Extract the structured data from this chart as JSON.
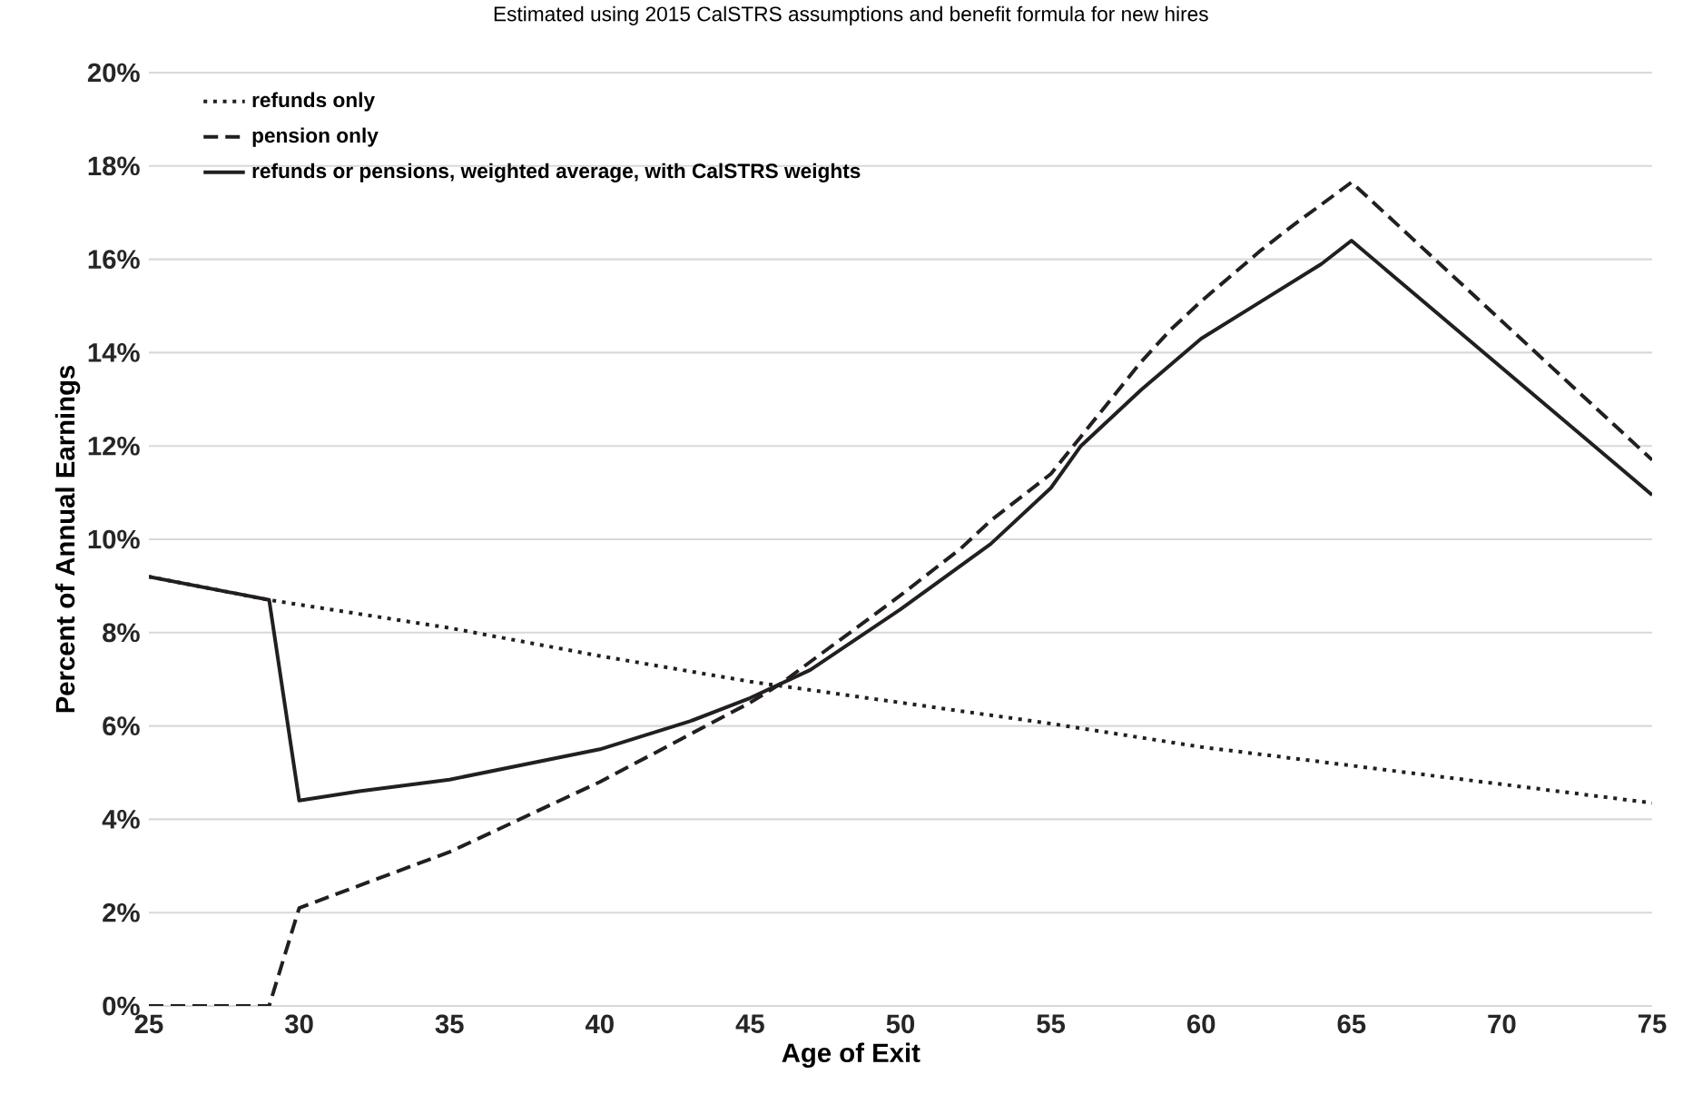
{
  "chart_data": {
    "type": "line",
    "title": "Estimated using 2015 CalSTRS assumptions and benefit formula for new hires",
    "xlabel": "Age of Exit",
    "ylabel": "Percent of Annual Earnings",
    "xlim": [
      25,
      75
    ],
    "xticks": [
      25,
      30,
      35,
      40,
      45,
      50,
      55,
      60,
      65,
      70,
      75
    ],
    "ylim": [
      0,
      20
    ],
    "yticks": [
      {
        "value": 0,
        "label": "0%"
      },
      {
        "value": 2,
        "label": "2%"
      },
      {
        "value": 4,
        "label": "4%"
      },
      {
        "value": 6,
        "label": "6%"
      },
      {
        "value": 8,
        "label": "8%"
      },
      {
        "value": 10,
        "label": "10%"
      },
      {
        "value": 12,
        "label": "12%"
      },
      {
        "value": 14,
        "label": "14%"
      },
      {
        "value": 16,
        "label": "16%"
      },
      {
        "value": 18,
        "label": "18%"
      },
      {
        "value": 20,
        "label": "20%"
      }
    ],
    "grid": "y",
    "legend": "top left",
    "marker": "none",
    "series": [
      {
        "name": "refunds only",
        "color": "#231f20",
        "line_style": "dotted",
        "x": [
          25,
          29,
          35,
          40,
          45,
          50,
          55,
          60,
          65,
          70,
          75
        ],
        "values": [
          9.2,
          8.7,
          8.1,
          7.5,
          6.95,
          6.5,
          6.05,
          5.55,
          5.15,
          4.75,
          4.35
        ]
      },
      {
        "name": "pension only",
        "color": "#231f20",
        "line_style": "dashed",
        "x": [
          25,
          29,
          30,
          35,
          40,
          45,
          46,
          50,
          52,
          53,
          55,
          56,
          57,
          58,
          59,
          60,
          62,
          63,
          65,
          75
        ],
        "values": [
          0,
          0,
          2.1,
          3.3,
          4.8,
          6.5,
          6.9,
          8.8,
          9.8,
          10.4,
          11.4,
          12.2,
          13.0,
          13.8,
          14.5,
          15.1,
          16.2,
          16.7,
          17.65,
          11.7
        ]
      },
      {
        "name": "refunds or pensions, weighted average, with CalSTRS weights",
        "color": "#231f20",
        "line_style": "solid",
        "x": [
          25,
          29,
          30,
          32,
          35,
          40,
          43,
          45,
          47,
          50,
          53,
          55,
          56,
          58,
          60,
          62,
          64,
          65,
          75
        ],
        "values": [
          9.2,
          8.7,
          4.4,
          4.6,
          4.85,
          5.5,
          6.1,
          6.6,
          7.2,
          8.5,
          9.9,
          11.1,
          12.0,
          13.2,
          14.3,
          15.1,
          15.9,
          16.4,
          10.95
        ]
      }
    ]
  }
}
